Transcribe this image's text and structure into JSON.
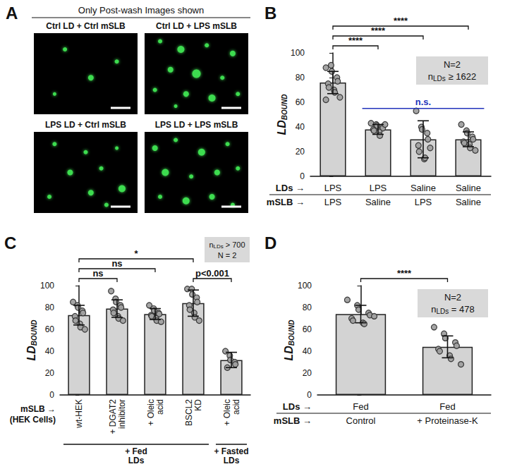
{
  "panel_a": {
    "letter": "A",
    "header": "Only Post-wash Images shown",
    "images": [
      "Ctrl LD + Ctrl mSLB",
      "Ctrl LD + LPS mSLB",
      "LPS LD + Ctrl mSLB",
      "LPS LD + LPS mSLB"
    ]
  },
  "chart_data": [
    {
      "panel": "B",
      "type": "bar",
      "categories": [
        "LPS\nLPS",
        "LPS\nSaline",
        "Saline\nLPS",
        "Saline\nSaline"
      ],
      "row_labels": [
        "LDs →",
        "mSLB →"
      ],
      "values": [
        76,
        38,
        30,
        30
      ],
      "errors": [
        9,
        4,
        15,
        6
      ],
      "points": [
        [
          88,
          90,
          85,
          80,
          77,
          75,
          72,
          70,
          68,
          64,
          62
        ],
        [
          43,
          42,
          41,
          40,
          39,
          38,
          37,
          36,
          33,
          42
        ],
        [
          53,
          40,
          38,
          35,
          30,
          25,
          20,
          14,
          15,
          23
        ],
        [
          42,
          37,
          35,
          32,
          30,
          28,
          27,
          26,
          23,
          21
        ]
      ],
      "color": "#d3d3d3",
      "grid": false,
      "ylim": [
        0,
        100
      ],
      "yticks": [
        0,
        20,
        40,
        60,
        80,
        100
      ],
      "y_label": {
        "text": "LD",
        "subscript": "BOUND"
      },
      "comparisons": [
        {
          "from": 0,
          "to": 1,
          "label": "****"
        },
        {
          "from": 0,
          "to": 2,
          "label": "****"
        },
        {
          "from": 0,
          "to": 3,
          "label": "****"
        }
      ],
      "line_annotations": [
        {
          "from": 1,
          "to": 3,
          "value": 55,
          "label": "n.s.",
          "color": "#2233bb"
        }
      ],
      "info_box": [
        [
          {
            "text": "N=2"
          }
        ],
        [
          {
            "text": "n"
          },
          {
            "sub": "LDs"
          },
          {
            "text": " ≥ 1622"
          }
        ]
      ]
    },
    {
      "panel": "C",
      "type": "bar",
      "categories": [
        "wt-HEK",
        "+ DGAT2\ninhibitor",
        "+ Oleic\nacid",
        "BSCL2\nKD",
        "+ Oleic\nacid"
      ],
      "row_labels": [
        "mSLB →\n(HEK Cells)"
      ],
      "groups": [
        {
          "label": "+ Fed\nLDs",
          "from": 0,
          "to": 3
        },
        {
          "label": "+ Fasted\nLDs",
          "from": 4,
          "to": 4
        }
      ],
      "values": [
        73,
        79,
        74,
        84,
        32
      ],
      "errors": [
        9,
        8,
        5,
        12,
        7
      ],
      "points": [
        [
          85,
          82,
          80,
          77,
          75,
          72,
          68,
          65,
          62,
          60
        ],
        [
          95,
          88,
          85,
          82,
          80,
          78,
          75,
          72,
          70,
          68
        ],
        [
          82,
          79,
          77,
          75,
          74,
          73,
          72,
          70,
          68,
          67
        ],
        [
          97,
          97,
          92,
          89,
          85,
          82,
          78,
          75,
          71,
          68
        ],
        [
          40,
          36,
          32,
          30,
          28,
          25
        ]
      ],
      "color": "#d3d3d3",
      "grid": false,
      "ylim": [
        0,
        100
      ],
      "yticks": [
        0,
        20,
        40,
        60,
        80,
        100
      ],
      "y_label": {
        "text": "LD",
        "subscript": "BOUND"
      },
      "comparisons": [
        {
          "from": 0,
          "to": 1,
          "label": "ns"
        },
        {
          "from": 0,
          "to": 2,
          "label": "ns"
        },
        {
          "from": 0,
          "to": 3,
          "label": "*"
        },
        {
          "from": 3,
          "to": 4,
          "label": "p<0.001"
        }
      ],
      "info_box": [
        [
          {
            "text": "n"
          },
          {
            "sub": "LDs"
          },
          {
            "text": " > 700"
          }
        ],
        [
          {
            "text": "N = 2"
          }
        ]
      ]
    },
    {
      "panel": "D",
      "type": "bar",
      "categories": [
        "Fed\nControl",
        "Fed\n+ Proteinase-K"
      ],
      "row_labels": [
        "LDs →",
        "mSLB →"
      ],
      "values": [
        74,
        44
      ],
      "errors": [
        8,
        10
      ],
      "points": [
        [
          87,
          82,
          78,
          75,
          73,
          70,
          68,
          66,
          65,
          72
        ],
        [
          62,
          56,
          52,
          48,
          45,
          42,
          40,
          36,
          33,
          28
        ]
      ],
      "color": "#d3d3d3",
      "grid": false,
      "ylim": [
        0,
        100
      ],
      "yticks": [
        0,
        20,
        40,
        60,
        80,
        100
      ],
      "y_label": {
        "text": "LD",
        "subscript": "BOUND"
      },
      "comparisons": [
        {
          "from": 0,
          "to": 1,
          "label": "****"
        }
      ],
      "info_box": [
        [
          {
            "text": "N=2"
          }
        ],
        [
          {
            "text": "n"
          },
          {
            "sub": "LDs"
          },
          {
            "text": " = 478"
          }
        ]
      ]
    }
  ]
}
